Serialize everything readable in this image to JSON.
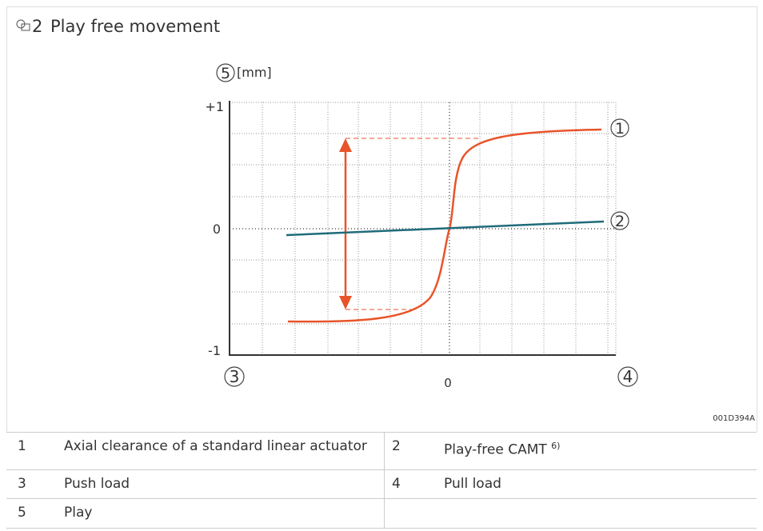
{
  "figure": {
    "number": "2",
    "title": "Play free movement",
    "code": "001D394A",
    "axis": {
      "y_marker": "5",
      "y_unit": "[mm]",
      "y_top": "+1",
      "y_zero": "0",
      "y_bottom": "-1",
      "x_left": "3",
      "x_zero": "0",
      "x_right": "4"
    },
    "curve_labels": [
      "1",
      "2"
    ]
  },
  "table": {
    "rows": [
      [
        "1",
        "Axial clearance of a standard linear actuator",
        "2",
        "Play-free CAMT"
      ],
      [
        "3",
        "Push load",
        "4",
        "Pull load"
      ],
      [
        "5",
        "Play"
      ]
    ],
    "note": "6)"
  }
}
